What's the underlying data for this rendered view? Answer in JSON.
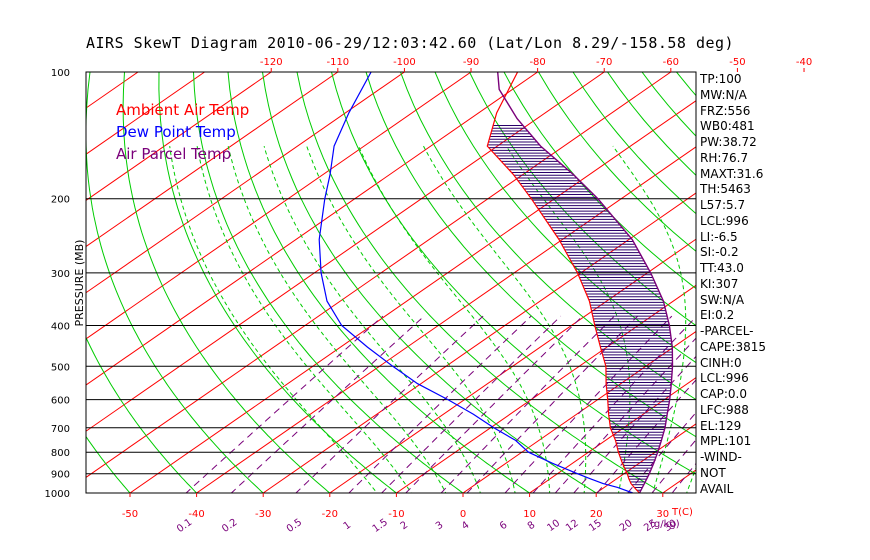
{
  "title": "AIRS SkewT Diagram 2010-06-29/12:03:42.60 (Lat/Lon 8.29/-158.58 deg)",
  "legend": [
    {
      "label": "Ambient Air Temp",
      "color": "#ff0000"
    },
    {
      "label": "Dew Point Temp",
      "color": "#0000ff"
    },
    {
      "label": "Air Parcel Temp",
      "color": "#7a007a"
    }
  ],
  "indices": [
    "TP:100",
    "MW:N/A",
    "FRZ:556",
    "WB0:481",
    "PW:38.72",
    "RH:76.7",
    "MAXT:31.6",
    "TH:5463",
    "L57:5.7",
    "LCL:996",
    "LI:-6.5",
    "SI:-0.2",
    "TT:43.0",
    "KI:307",
    "SW:N/A",
    "EI:0.2",
    "-PARCEL-",
    "CAPE:3815",
    "CINH:0",
    "LCL:996",
    "CAP:0.0",
    "LFC:988",
    "EL:129",
    "MPL:101",
    "-WIND-",
    "NOT",
    "AVAIL"
  ],
  "colors": {
    "isotherm": "#ff0000",
    "dry_adiabat": "#00cc00",
    "moist_adiabat": "#00cc00",
    "mixing_ratio": "#7a007a",
    "isobar": "#000000",
    "hatch": "#2a006a"
  },
  "chart_data": {
    "type": "skew-t",
    "title": "AIRS SkewT Diagram 2010-06-29/12:03:42.60 (Lat/Lon 8.29/-158.58 deg)",
    "ylabel": "PRESSURE (MB)",
    "xlabel": "T(C)",
    "mixing_ratio_label": "(g/kg)",
    "y_scale": "log",
    "ylim": [
      1000,
      100
    ],
    "pressure_ticks": [
      100,
      200,
      300,
      400,
      500,
      600,
      700,
      800,
      900,
      1000
    ],
    "bottom_temp_ticks": [
      -50,
      -40,
      -30,
      -20,
      -10,
      0,
      10,
      20,
      30
    ],
    "top_temp_ticks": [
      -120,
      -110,
      -100,
      -90,
      -80,
      -70,
      -60,
      -50,
      -40
    ],
    "mixing_ratio_ticks": [
      "0.1",
      "0.2",
      "0.5",
      "1",
      "1.5",
      "2",
      "3",
      "4",
      "6",
      "8",
      "10",
      "12",
      "15",
      "20",
      "25",
      "30",
      "40"
    ],
    "series": [
      {
        "name": "Ambient Air Temp",
        "pressure": [
          1000,
          970,
          950,
          925,
          900,
          850,
          800,
          750,
          700,
          650,
          600,
          550,
          500,
          450,
          400,
          350,
          300,
          250,
          200,
          175,
          150,
          125,
          100
        ],
        "temperature": [
          26.5,
          24.5,
          23.2,
          21.8,
          20.5,
          17.5,
          14.5,
          11.5,
          8.0,
          4.8,
          1.5,
          -2.2,
          -6.0,
          -11.0,
          -16.5,
          -22.6,
          -30.5,
          -40.5,
          -53.5,
          -61.5,
          -71.5,
          -77.3,
          -83.0
        ]
      },
      {
        "name": "Dew Point Temp",
        "pressure": [
          1000,
          970,
          950,
          925,
          900,
          850,
          800,
          750,
          700,
          650,
          600,
          550,
          500,
          450,
          400,
          350,
          300,
          250,
          200,
          175,
          150,
          125,
          100
        ],
        "temperature": [
          25.5,
          22.0,
          19.0,
          16.0,
          13.0,
          7.0,
          1.0,
          -3.5,
          -9.5,
          -15.5,
          -22.5,
          -30.5,
          -38.0,
          -46.0,
          -54.5,
          -62.0,
          -69.0,
          -76.5,
          -84.5,
          -89.0,
          -94.5,
          -99.5,
          -105.0
        ]
      },
      {
        "name": "Air Parcel Temp",
        "pressure": [
          1000,
          950,
          900,
          850,
          800,
          750,
          700,
          650,
          600,
          550,
          500,
          450,
          400,
          350,
          300,
          250,
          200,
          175,
          150,
          129,
          110,
          100
        ],
        "temperature": [
          26.5,
          25.2,
          23.8,
          22.2,
          20.4,
          18.4,
          16.2,
          13.6,
          10.8,
          7.6,
          4.0,
          -0.2,
          -5.3,
          -11.5,
          -19.5,
          -29.5,
          -43.5,
          -52.5,
          -63.5,
          -73.0,
          -82.0,
          -86.0
        ]
      }
    ]
  }
}
